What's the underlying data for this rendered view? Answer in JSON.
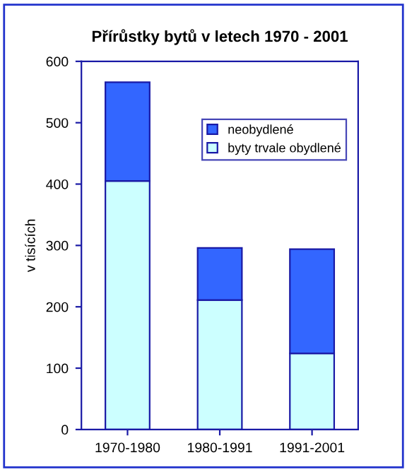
{
  "chart_data": {
    "type": "bar",
    "title": "Přírůstky bytů v letech 1970 - 2001",
    "ylabel": "v tisících",
    "categories": [
      "1970-1980",
      "1980-1991",
      "1991-2001"
    ],
    "stacked": true,
    "series": [
      {
        "name": "byty trvale obydlené",
        "color": "#ccffff",
        "values": [
          405,
          211,
          124
        ]
      },
      {
        "name": "neobydlené",
        "color": "#3366ff",
        "values": [
          161,
          85,
          170
        ]
      }
    ],
    "ylim": [
      0,
      600
    ],
    "yticks": [
      0,
      100,
      200,
      300,
      400,
      500,
      600
    ],
    "grid": false,
    "legend": "top right"
  }
}
